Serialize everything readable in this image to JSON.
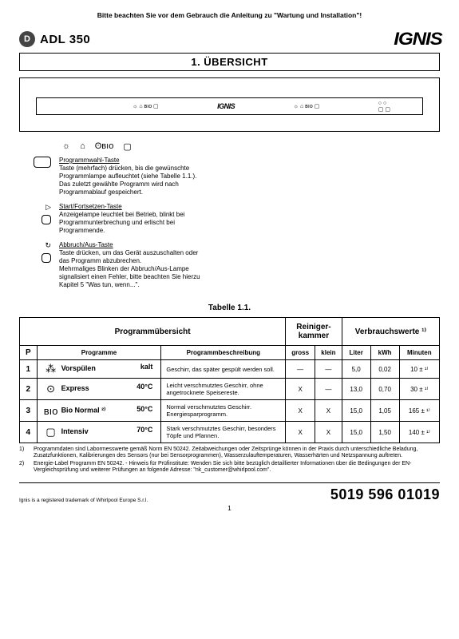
{
  "top_note": "Bitte beachten Sie vor dem Gebrauch die Anleitung zu \"Wartung und Installation\"!",
  "header": {
    "badge": "D",
    "model": "ADL 350",
    "brand": "IGNIS"
  },
  "section_title": "1. ÜBERSICHT",
  "panel": {
    "brand_small": "IGNIS"
  },
  "icon_row": [
    "☼",
    "⌂",
    "ʘʙıo",
    "▢"
  ],
  "controls": [
    {
      "icons": [
        "box-lg"
      ],
      "title": "Programmwahl-Taste",
      "lines": [
        "Taste (mehrfach) drücken, bis die gewünschte",
        "Programmlampe aufleuchtet (siehe Tabelle 1.1.).",
        "Das zuletzt gewählte Programm wird nach",
        "Programmablauf gespeichert."
      ]
    },
    {
      "icons": [
        "▷",
        "box-sm"
      ],
      "title": "Start/Fortsetzen-Taste",
      "lines": [
        "Anzeigelampe leuchtet bei Betrieb, blinkt bei",
        "Programmunterbrechung und erlischt bei",
        "Programmende."
      ]
    },
    {
      "icons": [
        "↻",
        "box-sm"
      ],
      "title": "Abbruch/Aus-Taste",
      "lines": [
        "Taste drücken, um das Gerät auszuschalten oder",
        "das Programm abzubrechen.",
        "Mehrmaliges Blinken der Abbruch/Aus-Lampe",
        "signalisiert einen Fehler, bitte beachten Sie hierzu",
        "Kapitel 5 \"Was tun, wenn...\"."
      ]
    }
  ],
  "table_title": "Tabelle 1.1.",
  "table": {
    "head_main": [
      "Programmübersicht",
      "Reiniger-\nkammer",
      "Verbrauchswerte ¹⁾"
    ],
    "head_sub": [
      "P",
      "Programme",
      "Programmbeschreibung",
      "gross",
      "klein",
      "Liter",
      "kWh",
      "Minuten"
    ],
    "rows": [
      {
        "p": "1",
        "icon": "⁂",
        "name": "Vorspülen",
        "temp": "kalt",
        "desc": "Geschirr, das später gespült werden soll.",
        "gross": "—",
        "klein": "—",
        "liter": "5,0",
        "kwh": "0,02",
        "min": "10 ± ¹⁾"
      },
      {
        "p": "2",
        "icon": "⊙",
        "name": "Express",
        "temp": "40°C",
        "desc": "Leicht verschmutztes Geschirr, ohne angetrocknete Speisereste.",
        "gross": "X",
        "klein": "—",
        "liter": "13,0",
        "kwh": "0,70",
        "min": "30 ± ¹⁾"
      },
      {
        "p": "3",
        "icon": "ʙıo",
        "name": "Bio Normal ²⁾",
        "temp": "50°C",
        "desc": "Normal verschmutztes Geschirr. Energiesparprogramm.",
        "gross": "X",
        "klein": "X",
        "liter": "15,0",
        "kwh": "1,05",
        "min": "165 ± ¹⁾"
      },
      {
        "p": "4",
        "icon": "▢",
        "name": "Intensiv",
        "temp": "70°C",
        "desc": "Stark verschmutztes Geschirr, besonders Töpfe und Pfannen.",
        "gross": "X",
        "klein": "X",
        "liter": "15,0",
        "kwh": "1,50",
        "min": "140 ± ¹⁾"
      }
    ]
  },
  "footnotes": [
    {
      "n": "1)",
      "t": "Programmdaten sind Labormesswerte gemäß Norm EN 50242. Zeitabweichungen oder Zeitsprünge können in der Praxis durch unterschiedliche Beladung, Zusatzfunktionen, Kalibrierungen des Sensors (nur bei Sensorprogrammen), Wasserzulauftemperaturen, Wasserhärten und Netzspannung auftreten."
    },
    {
      "n": "2)",
      "t": "Energie-Label Programm EN 50242. - Hinweis für Prüfinstitute: Wenden Sie sich bitte bezüglich detaillierter Informationen über die Bedingungen der EN-Vergleichsprüfung und weiterer Prüfungen an folgende Adresse: \"nk_customer@whirlpool.com\"."
    }
  ],
  "footer": {
    "trademark": "Ignis is a registered trademark of Whirlpool Europe S.r.l.",
    "partno": "5019 596 01019",
    "page": "1"
  }
}
